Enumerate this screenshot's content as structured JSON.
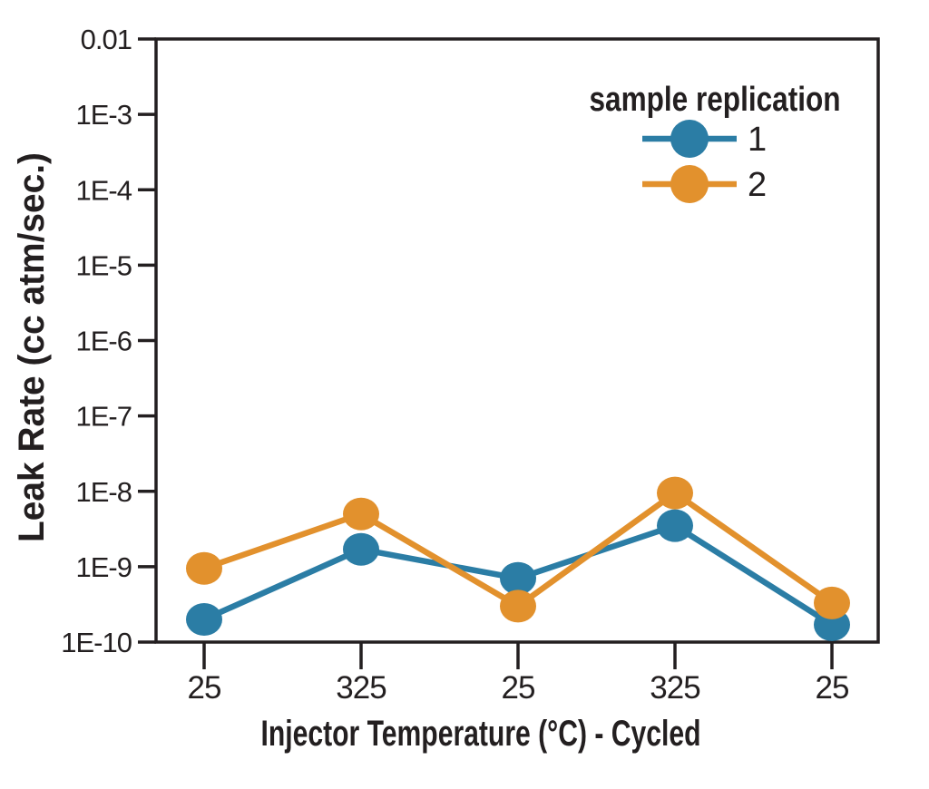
{
  "chart_data": {
    "type": "line",
    "title": "",
    "xlabel": "Injector Temperature (°C) - Cycled",
    "ylabel": "Leak Rate (cc atm/sec.)",
    "categories": [
      "25",
      "325",
      "25",
      "325",
      "25"
    ],
    "y_axis": {
      "scale": "log",
      "range": [
        1e-10,
        0.01
      ],
      "ticks": [
        {
          "label": "0.01",
          "value": 0.01
        },
        {
          "label": "1E-3",
          "value": 0.001
        },
        {
          "label": "1E-4",
          "value": 0.0001
        },
        {
          "label": "1E-5",
          "value": 1e-05
        },
        {
          "label": "1E-6",
          "value": 1e-06
        },
        {
          "label": "1E-7",
          "value": 1e-07
        },
        {
          "label": "1E-8",
          "value": 1e-08
        },
        {
          "label": "1E-9",
          "value": 1e-09
        },
        {
          "label": "1E-10",
          "value": 1e-10
        }
      ]
    },
    "legend": {
      "title": "sample replication",
      "position": "inside-top-right"
    },
    "series": [
      {
        "name": "1",
        "color": "#2b7da5",
        "values": [
          2e-10,
          1.7e-09,
          7e-10,
          3.5e-09,
          1.7e-10
        ]
      },
      {
        "name": "2",
        "color": "#e2912d",
        "values": [
          9.5e-10,
          5e-09,
          3e-10,
          9.5e-09,
          3.3e-10
        ]
      }
    ],
    "grid": false,
    "marker": "circle"
  },
  "colors": {
    "axis": "#231f20",
    "text": "#231f20",
    "background": "#ffffff"
  }
}
